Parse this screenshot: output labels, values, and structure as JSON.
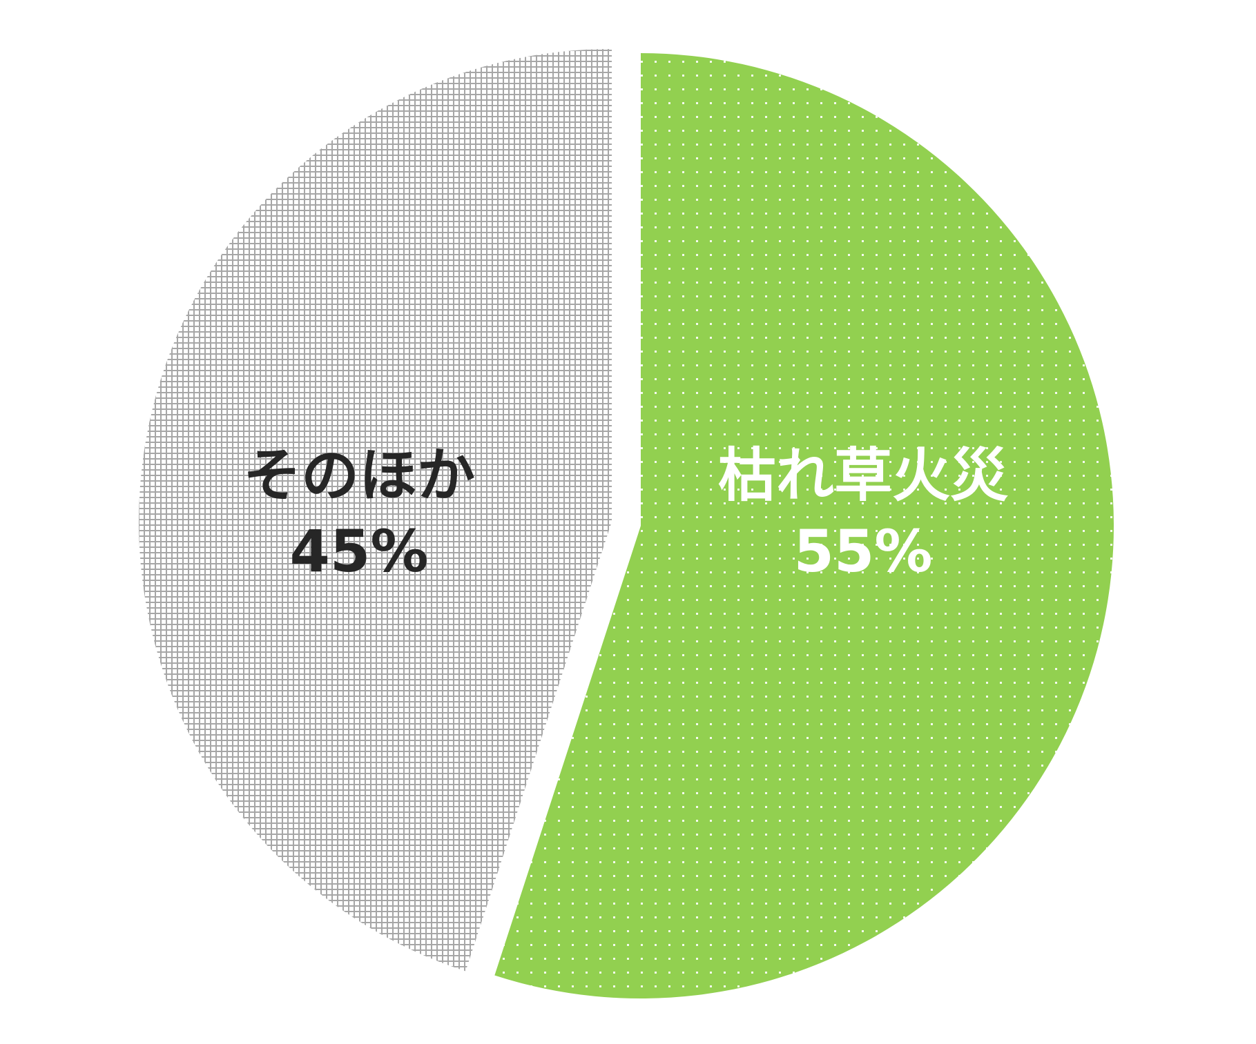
{
  "chart_data": {
    "type": "pie",
    "slices": [
      {
        "label": "枯れ草火災",
        "value": 55,
        "value_text": "55%",
        "color": "#92d050",
        "pattern": "dots",
        "text_color": "#ffffff"
      },
      {
        "label": "そのほか",
        "value": 45,
        "value_text": "45%",
        "color": "#d9d9d9",
        "pattern": "grid",
        "text_color": "#262626"
      }
    ],
    "start_angle_deg": 0,
    "direction": "clockwise",
    "exploded": true
  }
}
